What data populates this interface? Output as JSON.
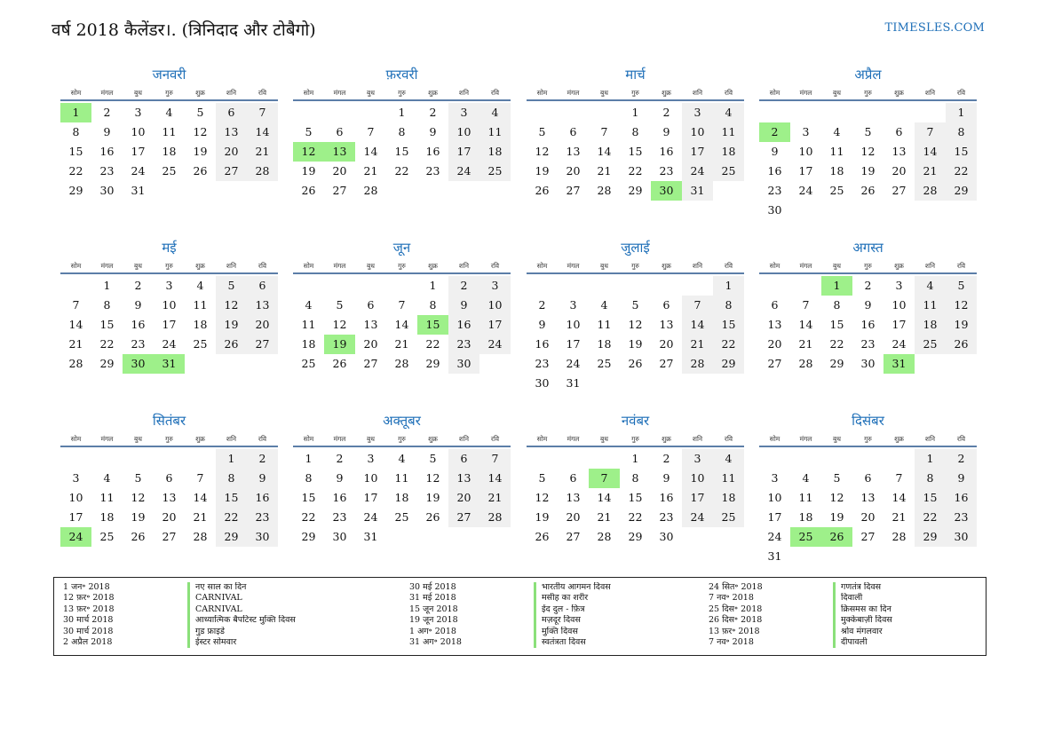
{
  "title": "वर्ष 2018 कैलेंडर।. (त्रिनिदाद और टोबैगो)",
  "site": "TIMESLES.COM",
  "colors": {
    "accent": "#1e6fb8",
    "holiday": "#9ef08a",
    "weekend": "#f0f0f0"
  },
  "weekdays": [
    "सोम",
    "मंगल",
    "बुध",
    "गुरु",
    "शुक्र",
    "शनि",
    "रवि"
  ],
  "months": [
    {
      "name": "जनवरी",
      "start": 0,
      "days": 31,
      "holidays": [
        1
      ]
    },
    {
      "name": "फ़रवरी",
      "start": 3,
      "days": 28,
      "holidays": [
        12,
        13
      ]
    },
    {
      "name": "मार्च",
      "start": 3,
      "days": 31,
      "holidays": [
        30
      ]
    },
    {
      "name": "अप्रैल",
      "start": 6,
      "days": 30,
      "holidays": [
        2
      ]
    },
    {
      "name": "मई",
      "start": 1,
      "days": 31,
      "holidays": [
        30,
        31
      ]
    },
    {
      "name": "जून",
      "start": 4,
      "days": 30,
      "holidays": [
        15,
        19
      ]
    },
    {
      "name": "जुलाई",
      "start": 6,
      "days": 31,
      "holidays": []
    },
    {
      "name": "अगस्त",
      "start": 2,
      "days": 31,
      "holidays": [
        1,
        31
      ]
    },
    {
      "name": "सितंबर",
      "start": 5,
      "days": 30,
      "holidays": [
        24
      ]
    },
    {
      "name": "अक्तूबर",
      "start": 0,
      "days": 31,
      "holidays": []
    },
    {
      "name": "नवंबर",
      "start": 3,
      "days": 30,
      "holidays": [
        7
      ]
    },
    {
      "name": "दिसंबर",
      "start": 5,
      "days": 31,
      "holidays": [
        25,
        26
      ]
    }
  ],
  "holiday_list": [
    [
      {
        "date": "1 जन॰ 2018",
        "name": "नए साल का दिन"
      },
      {
        "date": "12 फ़र॰ 2018",
        "name": "CARNIVAL"
      },
      {
        "date": "13 फ़र॰ 2018",
        "name": "CARNIVAL"
      },
      {
        "date": "30 मार्च 2018",
        "name": "आध्यात्मिक बैपटिस्ट मुक्ति दिवस"
      },
      {
        "date": "30 मार्च 2018",
        "name": "गुड फ्राइडे"
      },
      {
        "date": "2 अप्रैल 2018",
        "name": "ईस्टर सोमवार"
      }
    ],
    [
      {
        "date": "30 मई 2018",
        "name": "भारतीय आगमन दिवस"
      },
      {
        "date": "31 मई 2018",
        "name": "मसीह का शरीर"
      },
      {
        "date": "15 जून 2018",
        "name": "ईद दुल - फ़ित्र"
      },
      {
        "date": "19 जून 2018",
        "name": "मज़दूर दिवस"
      },
      {
        "date": "1 अग॰ 2018",
        "name": "मुक्ति दिवस"
      },
      {
        "date": "31 अग॰ 2018",
        "name": "स्वतंत्रता दिवस"
      }
    ],
    [
      {
        "date": "24 सित॰ 2018",
        "name": "गणतंत्र दिवस"
      },
      {
        "date": "7 नव॰ 2018",
        "name": "दिवाली"
      },
      {
        "date": "25 दिस॰ 2018",
        "name": "क्रिसमस का दिन"
      },
      {
        "date": "26 दिस॰ 2018",
        "name": "मुक्केबाज़ी दिवस"
      },
      {
        "date": "13 फ़र॰ 2018",
        "name": "श्रोव मंगलवार"
      },
      {
        "date": "7 नव॰ 2018",
        "name": "दीपावली"
      }
    ]
  ]
}
